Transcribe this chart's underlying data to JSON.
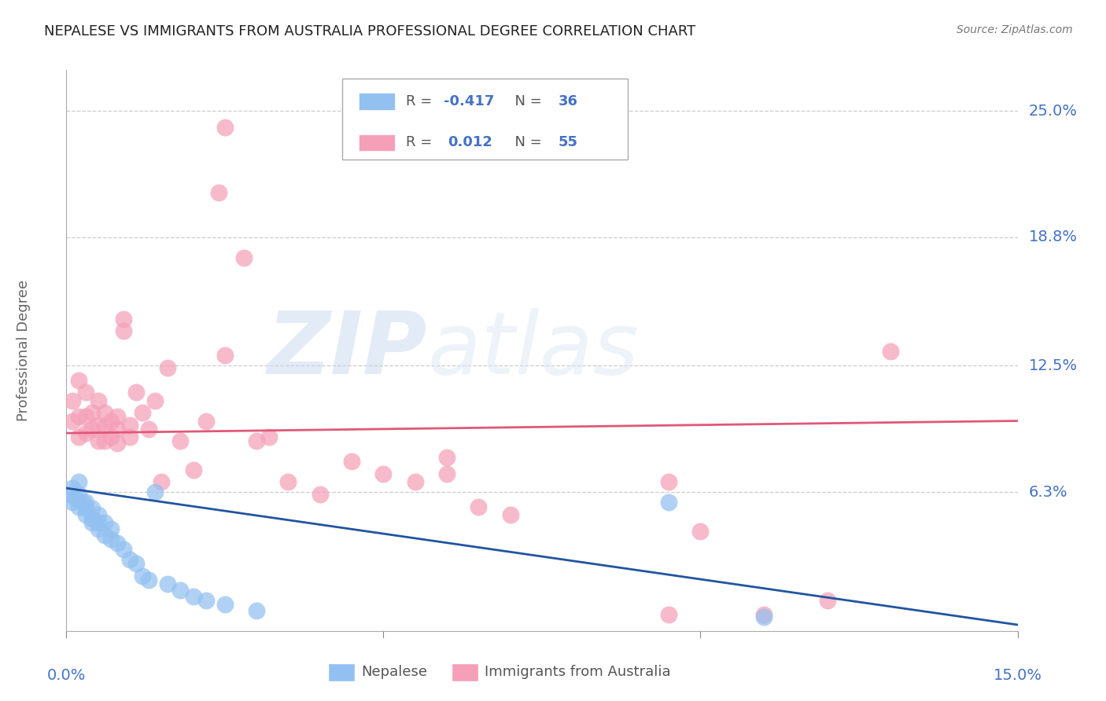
{
  "title": "NEPALESE VS IMMIGRANTS FROM AUSTRALIA PROFESSIONAL DEGREE CORRELATION CHART",
  "source": "Source: ZipAtlas.com",
  "ylabel": "Professional Degree",
  "ytick_labels": [
    "6.3%",
    "12.5%",
    "18.8%",
    "25.0%"
  ],
  "ytick_values": [
    0.063,
    0.125,
    0.188,
    0.25
  ],
  "xlim": [
    0.0,
    0.15
  ],
  "ylim": [
    -0.005,
    0.27
  ],
  "legend_r_blue": "-0.417",
  "legend_n_blue": "36",
  "legend_r_pink": "0.012",
  "legend_n_pink": "55",
  "blue_color": "#92C0F0",
  "pink_color": "#F5A0B8",
  "blue_line_color": "#2155A0",
  "pink_line_color": "#E05878",
  "background_color": "#ffffff",
  "nepalese_x": [
    0.0005,
    0.001,
    0.001,
    0.0015,
    0.002,
    0.002,
    0.002,
    0.0025,
    0.003,
    0.003,
    0.003,
    0.004,
    0.004,
    0.004,
    0.005,
    0.005,
    0.005,
    0.006,
    0.006,
    0.007,
    0.007,
    0.008,
    0.009,
    0.01,
    0.011,
    0.012,
    0.013,
    0.014,
    0.016,
    0.018,
    0.02,
    0.022,
    0.025,
    0.095,
    0.11,
    0.03
  ],
  "nepalese_y": [
    0.062,
    0.058,
    0.065,
    0.06,
    0.056,
    0.062,
    0.068,
    0.058,
    0.052,
    0.058,
    0.055,
    0.05,
    0.055,
    0.048,
    0.048,
    0.052,
    0.045,
    0.042,
    0.048,
    0.04,
    0.045,
    0.038,
    0.035,
    0.03,
    0.028,
    0.022,
    0.02,
    0.063,
    0.018,
    0.015,
    0.012,
    0.01,
    0.008,
    0.058,
    0.002,
    0.005
  ],
  "australia_x": [
    0.001,
    0.001,
    0.002,
    0.002,
    0.002,
    0.003,
    0.003,
    0.003,
    0.004,
    0.004,
    0.005,
    0.005,
    0.005,
    0.006,
    0.006,
    0.006,
    0.007,
    0.007,
    0.008,
    0.008,
    0.008,
    0.009,
    0.009,
    0.01,
    0.01,
    0.011,
    0.012,
    0.013,
    0.014,
    0.015,
    0.016,
    0.018,
    0.02,
    0.022,
    0.024,
    0.025,
    0.028,
    0.03,
    0.032,
    0.035,
    0.04,
    0.045,
    0.05,
    0.055,
    0.06,
    0.06,
    0.065,
    0.07,
    0.095,
    0.1,
    0.11,
    0.12,
    0.13,
    0.095,
    0.025
  ],
  "australia_y": [
    0.098,
    0.108,
    0.09,
    0.1,
    0.118,
    0.092,
    0.1,
    0.112,
    0.094,
    0.102,
    0.088,
    0.096,
    0.108,
    0.088,
    0.095,
    0.102,
    0.09,
    0.098,
    0.087,
    0.094,
    0.1,
    0.142,
    0.148,
    0.09,
    0.096,
    0.112,
    0.102,
    0.094,
    0.108,
    0.068,
    0.124,
    0.088,
    0.074,
    0.098,
    0.21,
    0.242,
    0.178,
    0.088,
    0.09,
    0.068,
    0.062,
    0.078,
    0.072,
    0.068,
    0.08,
    0.072,
    0.056,
    0.052,
    0.003,
    0.044,
    0.003,
    0.01,
    0.132,
    0.068,
    0.13
  ]
}
